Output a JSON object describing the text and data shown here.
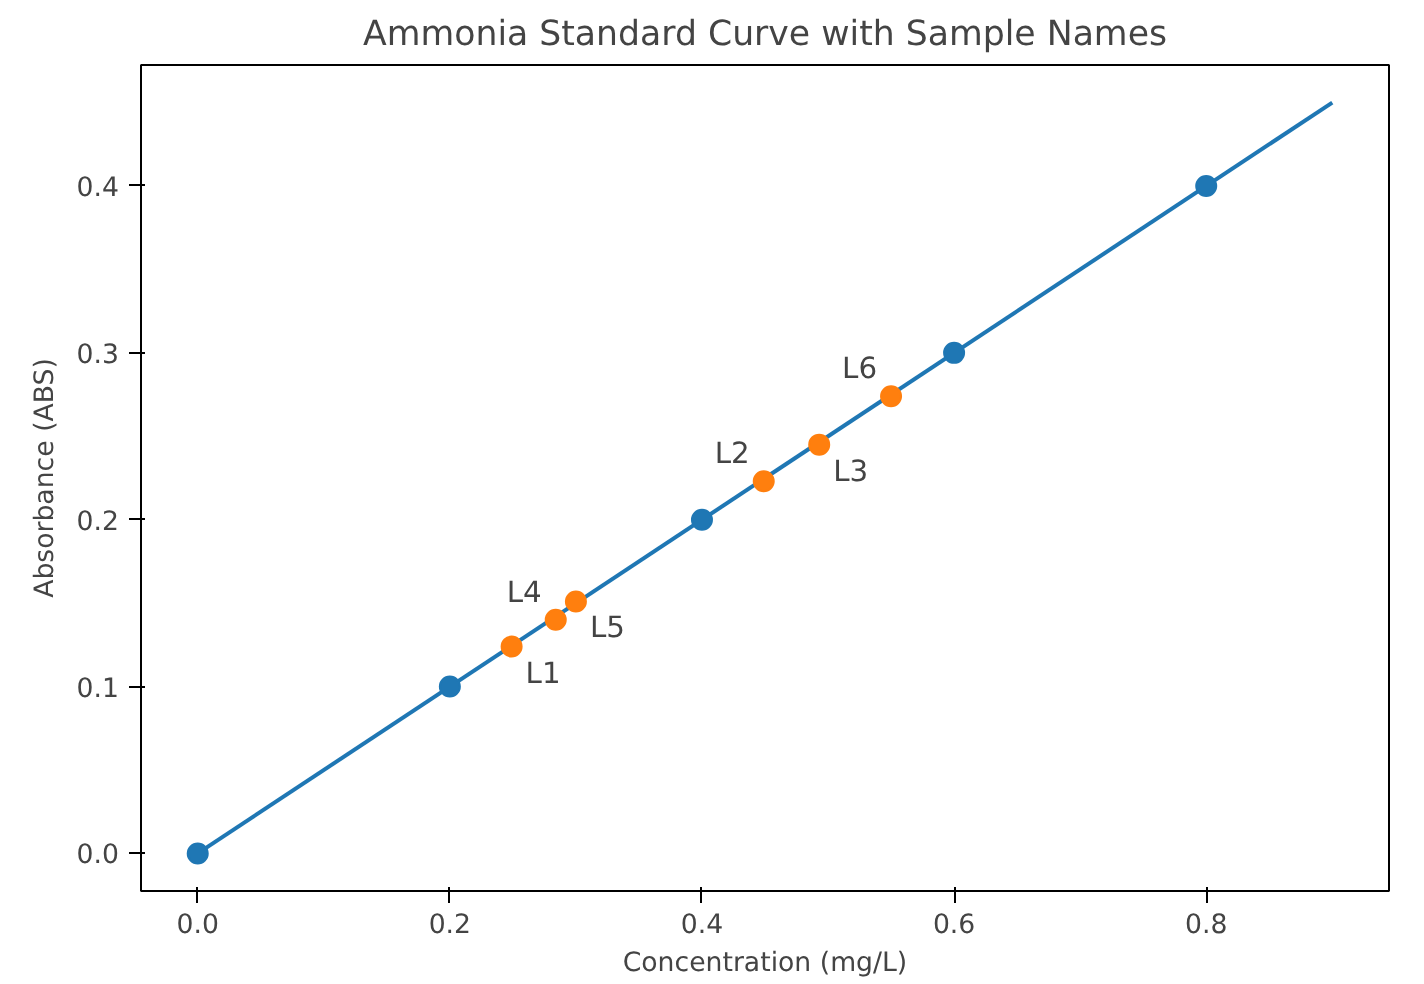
{
  "chart_data": {
    "type": "scatter",
    "title": "Ammonia Standard Curve with Sample Names",
    "xlabel": "Concentration (mg/L)",
    "ylabel": "Absorbance (ABS)",
    "xlim": [
      -0.045,
      0.945
    ],
    "ylim": [
      -0.0225,
      0.4725
    ],
    "xticks": [
      {
        "value": 0,
        "label": "0.0"
      },
      0.2,
      0.4,
      0.6,
      0.8
    ],
    "yticks": [
      {
        "value": 0,
        "label": "0.0"
      },
      0.1,
      0.2,
      0.3,
      0.4
    ],
    "grid": false,
    "marker": "circle",
    "series": [
      {
        "type": "line",
        "color": "#1f77b4",
        "x": [
          0,
          0.9
        ],
        "values": [
          0,
          0.45
        ],
        "marker": "none"
      },
      {
        "color": "#1f77b4",
        "x": [
          0,
          0.2,
          0.4,
          0.6,
          0.8
        ],
        "values": [
          0,
          0.1,
          0.2,
          0.3,
          0.4
        ]
      },
      {
        "color": "#ff7f0e",
        "x": [
          0.249,
          0.449,
          0.493,
          0.284,
          0.3,
          0.55
        ],
        "values": [
          0.124,
          0.223,
          0.245,
          0.14,
          0.151,
          0.274
        ]
      }
    ],
    "annotations": [
      {
        "text": "L1",
        "x": 0.249,
        "y": 0.124
      },
      {
        "text": "L2",
        "x": 0.449,
        "y": 0.223
      },
      {
        "text": "L3",
        "x": 0.493,
        "y": 0.245
      },
      {
        "text": "L4",
        "x": 0.284,
        "y": 0.14
      },
      {
        "text": "L5",
        "x": 0.3,
        "y": 0.151
      },
      {
        "text": "L6",
        "x": 0.55,
        "y": 0.274
      }
    ]
  }
}
